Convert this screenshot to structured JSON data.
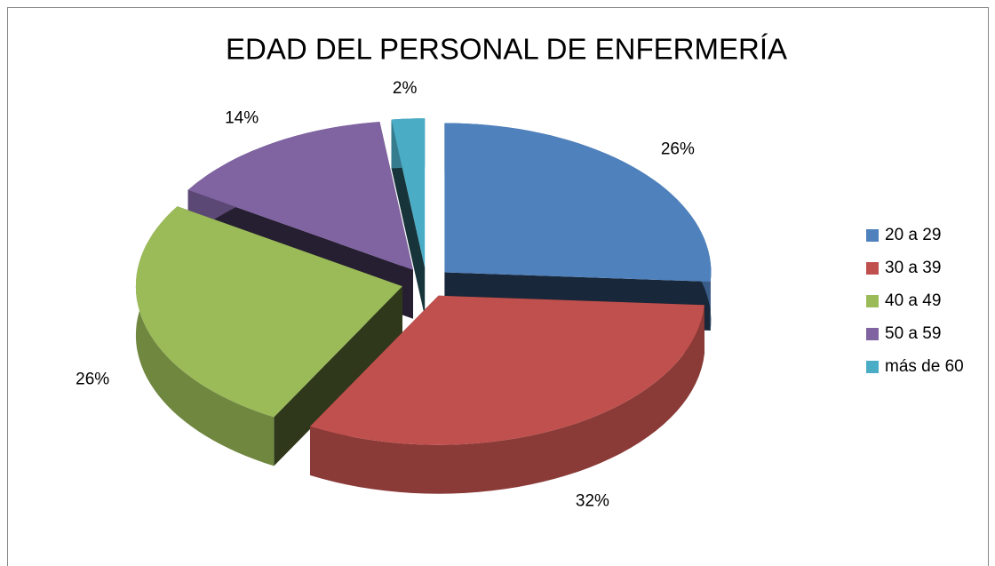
{
  "chart_data": {
    "type": "pie",
    "title": "EDAD DEL PERSONAL DE ENFERMERÍA",
    "categories": [
      "20 a 29",
      "30 a 39",
      "40 a 49",
      "50 a 59",
      "más de 60"
    ],
    "values": [
      26,
      32,
      26,
      14,
      2
    ],
    "value_labels": [
      "26%",
      "32%",
      "26%",
      "14%",
      "2%"
    ],
    "colors": [
      "#4f81bd",
      "#c0504d",
      "#9bbb59",
      "#8064a2",
      "#4bacc6"
    ],
    "legend": "right"
  }
}
